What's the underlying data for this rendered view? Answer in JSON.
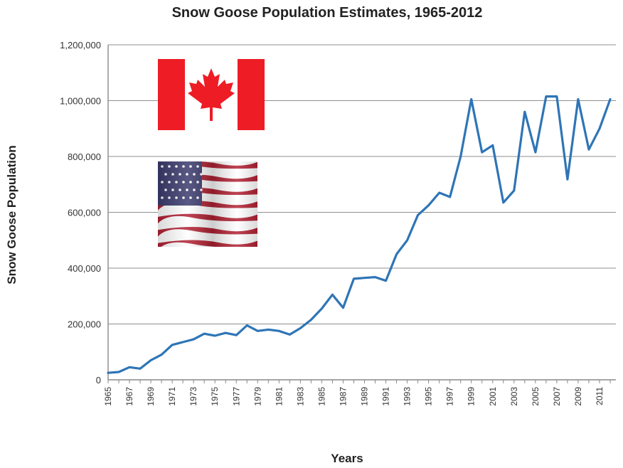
{
  "chart_data": {
    "type": "line",
    "title": "Snow Goose Population Estimates, 1965-2012",
    "xlabel": "Years",
    "ylabel": "Snow Goose Population",
    "ylim": [
      0,
      1200000
    ],
    "yticks": [
      0,
      200000,
      400000,
      600000,
      800000,
      1000000,
      1200000
    ],
    "ytick_labels": [
      "0",
      "200,000",
      "400,000",
      "600,000",
      "800,000",
      "1,000,000",
      "1,200,000"
    ],
    "xticks": [
      1965,
      1967,
      1969,
      1971,
      1973,
      1975,
      1977,
      1979,
      1981,
      1983,
      1985,
      1987,
      1989,
      1991,
      1993,
      1995,
      1997,
      1999,
      2001,
      2003,
      2005,
      2007,
      2009,
      2011
    ],
    "xtick_labels": [
      "1965",
      "1967",
      "1969",
      "1971",
      "1973",
      "1975",
      "1977",
      "1979",
      "1981",
      "1983",
      "1985",
      "1987",
      "1989",
      "1991",
      "1993",
      "1995",
      "1997",
      "1999",
      "2001",
      "2003",
      "2005",
      "2007",
      "2009",
      "2011"
    ],
    "grid": "horizontal",
    "legend": "none",
    "line_color": "#2e75b6",
    "series": [
      {
        "x": [
          1965,
          1966,
          1967,
          1968,
          1969,
          1970,
          1971,
          1972,
          1973,
          1974,
          1975,
          1976,
          1977,
          1978,
          1979,
          1980,
          1981,
          1982,
          1983,
          1984,
          1985,
          1986,
          1987,
          1988,
          1989,
          1990,
          1991,
          1992,
          1993,
          1994,
          1995,
          1996,
          1997,
          1998,
          1999,
          2000,
          2001,
          2002,
          2003,
          2004,
          2005,
          2006,
          2007,
          2008,
          2009,
          2010,
          2011,
          2012
        ],
        "values": [
          25000,
          28000,
          45000,
          40000,
          70000,
          90000,
          125000,
          135000,
          145000,
          165000,
          158000,
          168000,
          160000,
          195000,
          175000,
          180000,
          175000,
          162000,
          185000,
          215000,
          255000,
          305000,
          258000,
          362000,
          365000,
          368000,
          355000,
          450000,
          500000,
          590000,
          625000,
          670000,
          655000,
          800000,
          1005000,
          815000,
          840000,
          635000,
          678000,
          960000,
          815000,
          1015000,
          1015000,
          718000,
          1005000,
          825000,
          900000,
          1005000
        ]
      }
    ]
  },
  "images": {
    "flag_canada": "canada-flag-icon",
    "flag_usa": "usa-flag-icon",
    "canada_red": "#ee1c25",
    "usa_red": "#b22234",
    "usa_blue": "#3c3b6e"
  }
}
